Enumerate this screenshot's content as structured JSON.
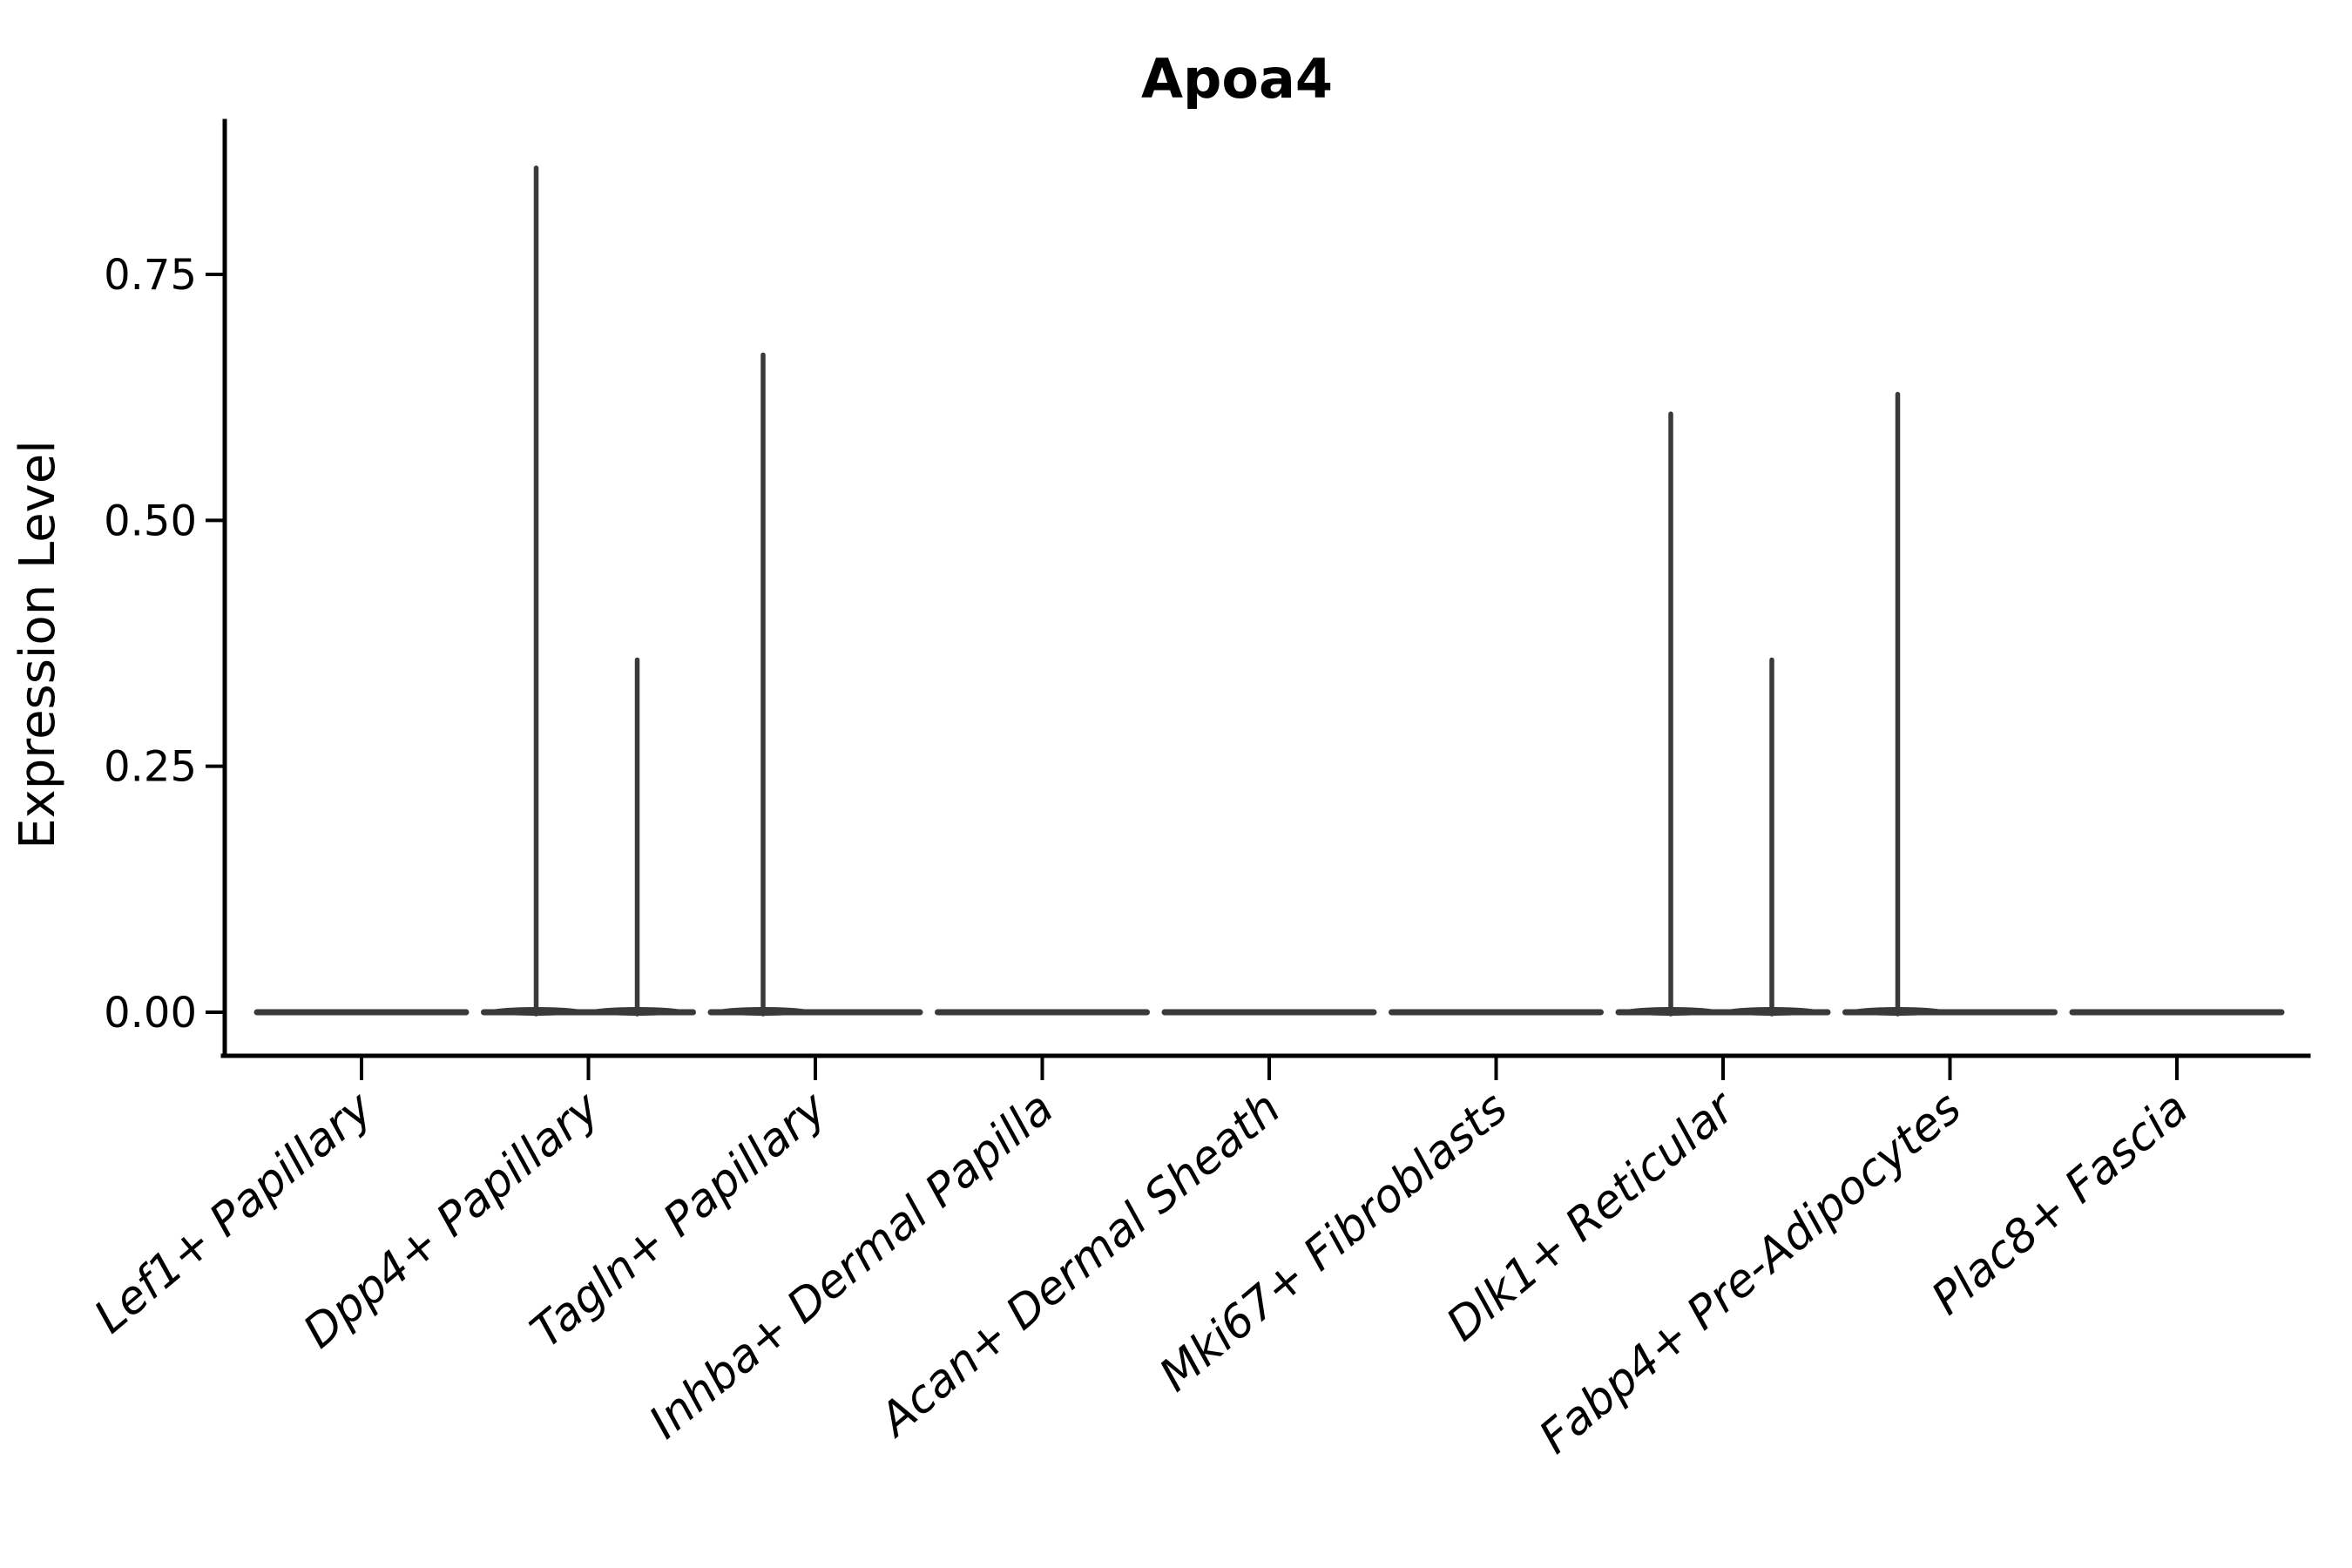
{
  "chart_data": {
    "type": "violin",
    "title": "Apoa4",
    "ylabel": "Expression Level",
    "yticks": [
      {
        "label": "0.00",
        "value": 0.0
      },
      {
        "label": "0.25",
        "value": 0.25
      },
      {
        "label": "0.50",
        "value": 0.5
      },
      {
        "label": "0.75",
        "value": 0.75
      }
    ],
    "ylim": [
      -0.043,
      0.906
    ],
    "grid": false,
    "legend": "none",
    "categories": [
      "Lef1+ Papillary",
      "Dpp4+ Papillary",
      "Tagln+ Papillary",
      "Inhba+ Dermal Papilla",
      "Acan+ Dermal Sheath",
      "Mki67+ Fibroblasts",
      "Dlk1+ Reticular",
      "Fabp4+ Pre-Adipocytes",
      "Plac8+ Fascia"
    ],
    "violins": [
      {
        "category": "Lef1+ Papillary",
        "baseline_value": 0,
        "spikes": []
      },
      {
        "category": "Dpp4+ Papillary",
        "baseline_value": 0,
        "spikes": [
          {
            "side": "left",
            "max_expression": 0.86
          },
          {
            "side": "right",
            "max_expression": 0.36
          }
        ]
      },
      {
        "category": "Tagln+ Papillary",
        "baseline_value": 0,
        "spikes": [
          {
            "side": "left",
            "max_expression": 0.67
          }
        ]
      },
      {
        "category": "Inhba+ Dermal Papilla",
        "baseline_value": 0,
        "spikes": []
      },
      {
        "category": "Acan+ Dermal Sheath",
        "baseline_value": 0,
        "spikes": []
      },
      {
        "category": "Mki67+ Fibroblasts",
        "baseline_value": 0,
        "spikes": []
      },
      {
        "category": "Dlk1+ Reticular",
        "baseline_value": 0,
        "spikes": [
          {
            "side": "left",
            "max_expression": 0.61
          },
          {
            "side": "right",
            "max_expression": 0.36
          }
        ]
      },
      {
        "category": "Fabp4+ Pre-Adipocytes",
        "baseline_value": 0,
        "spikes": [
          {
            "side": "left",
            "max_expression": 0.63
          }
        ]
      },
      {
        "category": "Plac8+ Fascia",
        "baseline_value": 0,
        "spikes": []
      }
    ],
    "colors": {
      "violin_stroke": "#3a3a3a",
      "axis": "#000000",
      "text": "#000000",
      "background": "#ffffff"
    }
  }
}
